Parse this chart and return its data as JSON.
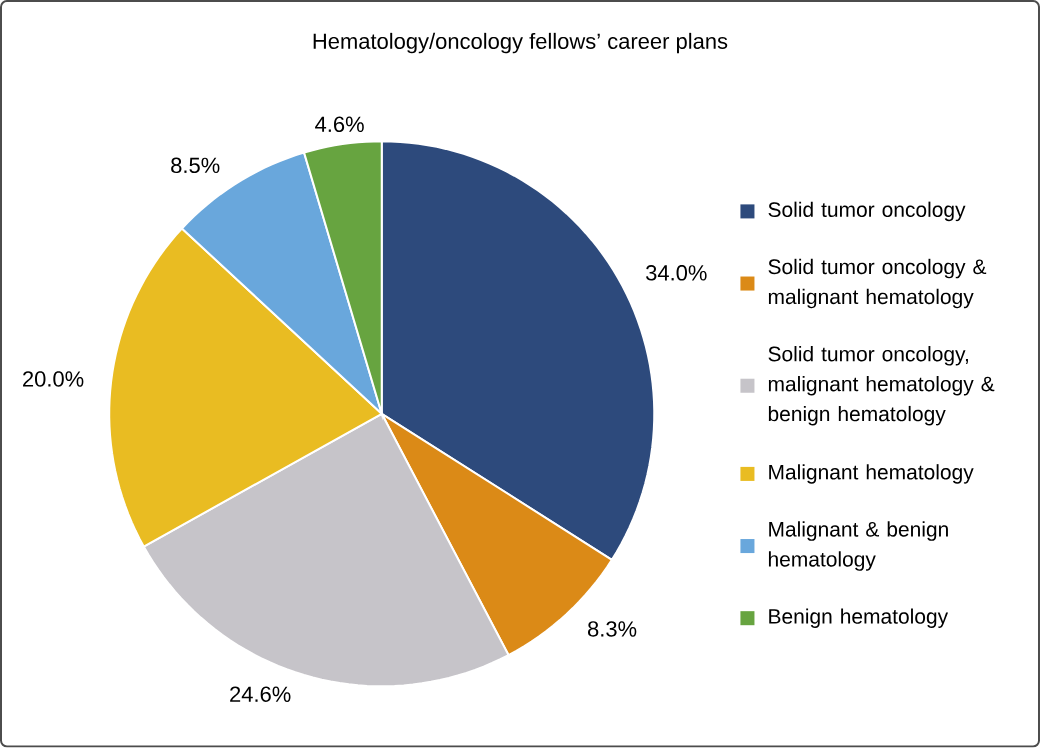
{
  "chart_data": {
    "type": "pie",
    "title": "Hematology/oncology fellows’ career plans",
    "categories": [
      "Solid tumor oncology",
      "Solid tumor oncology & malignant hematology",
      "Solid tumor oncology, malignant hematology & benign hematology",
      "Malignant hematology",
      "Malignant & benign hematology",
      "Benign hematology"
    ],
    "values": [
      34.0,
      8.3,
      24.6,
      20.0,
      8.5,
      4.6
    ],
    "colors": [
      "#2d4a7c",
      "#db8a17",
      "#c6c4c9",
      "#e9bc22",
      "#69a7dc",
      "#67a440"
    ],
    "value_labels": [
      "34.0%",
      "8.3%",
      "24.6%",
      "20.0%",
      "8.5%",
      "4.6%"
    ],
    "legend": "right"
  }
}
